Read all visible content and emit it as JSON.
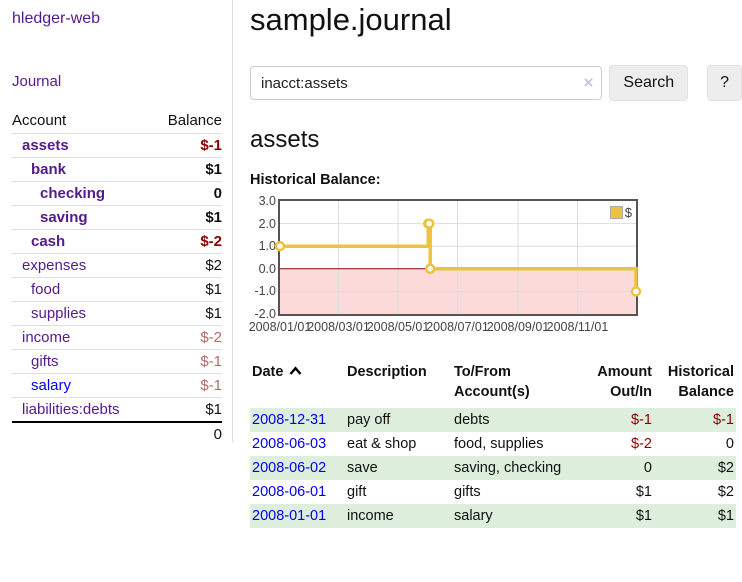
{
  "sidebar": {
    "app_title": "hledger-web",
    "journal_link": "Journal",
    "accounts_header": {
      "account": "Account",
      "balance": "Balance"
    },
    "accounts": [
      {
        "name": "assets",
        "balance": "$-1"
      },
      {
        "name": "bank",
        "balance": "$1"
      },
      {
        "name": "checking",
        "balance": "0"
      },
      {
        "name": "saving",
        "balance": "$1"
      },
      {
        "name": "cash",
        "balance": "$-2"
      },
      {
        "name": "expenses",
        "balance": "$2"
      },
      {
        "name": "food",
        "balance": "$1"
      },
      {
        "name": "supplies",
        "balance": "$1"
      },
      {
        "name": "income",
        "balance": "$-2"
      },
      {
        "name": "gifts",
        "balance": "$-1"
      },
      {
        "name": "salary",
        "balance": "$-1"
      },
      {
        "name": "liabilities:debts",
        "balance": "$1"
      }
    ],
    "total": "0"
  },
  "header": {
    "title": "sample.journal"
  },
  "search": {
    "query": "inacct:assets",
    "clear_icon": "×",
    "search_button": "Search",
    "help_button": "?"
  },
  "account_page": {
    "title": "assets",
    "chart_label": "Historical Balance:"
  },
  "chart_data": {
    "type": "line",
    "step": true,
    "title": "Historical Balance",
    "x_range": [
      "2008-01-01",
      "2008-12-31"
    ],
    "ylim": [
      -2,
      3
    ],
    "grid": true,
    "legend_position": "top-right",
    "series": [
      {
        "name": "$",
        "color": "#edc240",
        "points": [
          [
            "2008-01-01",
            1
          ],
          [
            "2008-06-01",
            2
          ],
          [
            "2008-06-02",
            2
          ],
          [
            "2008-06-03",
            0
          ],
          [
            "2008-12-31",
            -1
          ]
        ]
      }
    ],
    "y_ticks": [
      {
        "value": 3,
        "label": "3.0"
      },
      {
        "value": 2,
        "label": "2.0"
      },
      {
        "value": 1,
        "label": "1.0"
      },
      {
        "value": 0,
        "label": "0.0"
      },
      {
        "value": -1,
        "label": "-1.0"
      },
      {
        "value": -2,
        "label": "-2.0"
      }
    ],
    "x_ticks": [
      {
        "date": "2008-01-01",
        "label": "2008/01/01"
      },
      {
        "date": "2008-03-01",
        "label": "2008/03/01"
      },
      {
        "date": "2008-05-01",
        "label": "2008/05/01"
      },
      {
        "date": "2008-07-01",
        "label": "2008/07/01"
      },
      {
        "date": "2008-09-01",
        "label": "2008/09/01"
      },
      {
        "date": "2008-11-01",
        "label": "2008/11/01"
      }
    ],
    "colors": {
      "negative_region": "#fcdada",
      "zero_line": "#8b0000",
      "gridline": "#dddddd",
      "border": "#545454"
    }
  },
  "register": {
    "headers": {
      "date": "Date",
      "description": "Description",
      "accounts": "To/From Account(s)",
      "amount": "Amount Out/In",
      "balance": "Historical Balance"
    },
    "rows": [
      {
        "date": "2008-12-31",
        "description": "pay off",
        "accounts": "debts",
        "amount": "$-1",
        "balance": "$-1"
      },
      {
        "date": "2008-06-03",
        "description": "eat & shop",
        "accounts": "food, supplies",
        "amount": "$-2",
        "balance": "0"
      },
      {
        "date": "2008-06-02",
        "description": "save",
        "accounts": "saving, checking",
        "amount": "0",
        "balance": "$2"
      },
      {
        "date": "2008-06-01",
        "description": "gift",
        "accounts": "gifts",
        "amount": "$1",
        "balance": "$2"
      },
      {
        "date": "2008-01-01",
        "description": "income",
        "accounts": "salary",
        "amount": "$1",
        "balance": "$1"
      }
    ]
  }
}
